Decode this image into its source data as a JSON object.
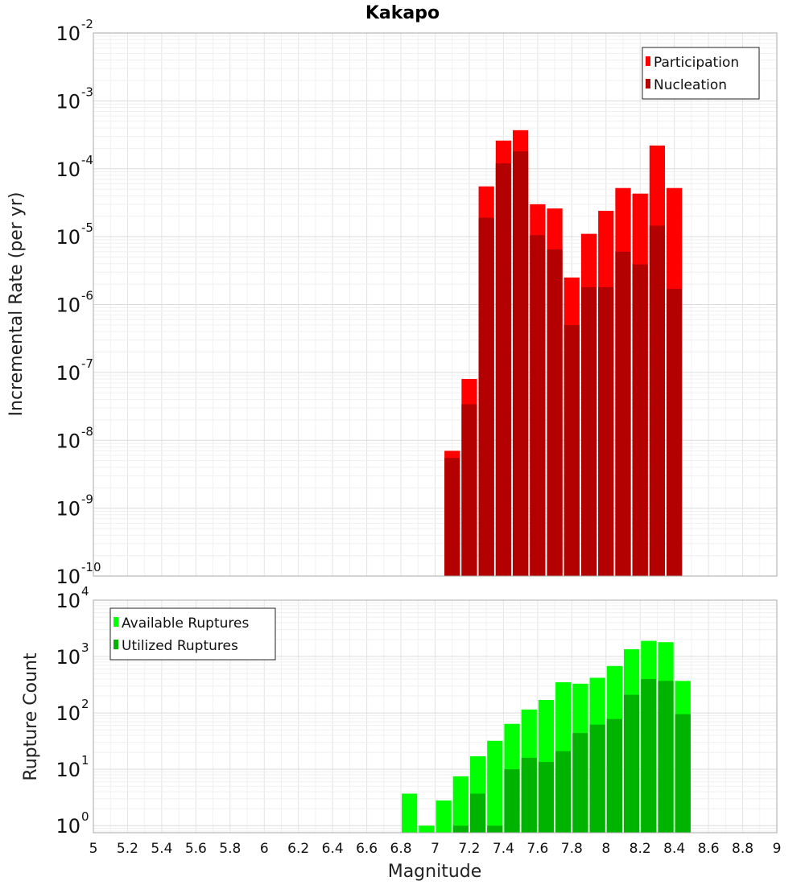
{
  "chart_data": [
    {
      "type": "bar",
      "title": "Kakapo",
      "xlabel": "Magnitude",
      "ylabel": "Incremental Rate (per yr)",
      "yscale": "log",
      "xlim": [
        5,
        9
      ],
      "ylim": [
        1e-10,
        0.01
      ],
      "grid": true,
      "legend_position": "top-right",
      "x": [
        7.1,
        7.2,
        7.3,
        7.4,
        7.5,
        7.6,
        7.7,
        7.8,
        7.9,
        8.0,
        8.1,
        8.2,
        8.3,
        8.4
      ],
      "series": [
        {
          "name": "Participation",
          "color": "#ff0000",
          "values": [
            7e-09,
            8e-08,
            5.5e-05,
            0.00026,
            0.00037,
            3e-05,
            2.6e-05,
            2.5e-06,
            1.1e-05,
            2.4e-05,
            5.2e-05,
            4.3e-05,
            0.00022,
            5.2e-05
          ]
        },
        {
          "name": "Nucleation",
          "color": "#b30000",
          "values": [
            5.5e-09,
            3.4e-08,
            1.9e-05,
            0.00012,
            0.00018,
            1.05e-05,
            6.5e-06,
            5e-07,
            1.8e-06,
            1.8e-06,
            6e-06,
            3.9e-06,
            1.45e-05,
            1.7e-06
          ]
        }
      ]
    },
    {
      "type": "bar",
      "title": "",
      "xlabel": "Magnitude",
      "ylabel": "Rupture Count",
      "yscale": "log",
      "xlim": [
        5,
        9
      ],
      "ylim": [
        0.75,
        10000
      ],
      "grid": true,
      "legend_position": "top-left",
      "x": [
        6.85,
        6.95,
        7.05,
        7.15,
        7.25,
        7.35,
        7.45,
        7.55,
        7.65,
        7.75,
        7.85,
        7.95,
        8.05,
        8.15,
        8.25,
        8.35,
        8.45
      ],
      "series": [
        {
          "name": "Available Ruptures",
          "color": "#00ff00",
          "values": [
            3.7,
            1,
            2.8,
            7.5,
            17,
            32,
            64,
            115,
            170,
            350,
            330,
            420,
            680,
            1350,
            1900,
            1800,
            370
          ]
        },
        {
          "name": "Utilized Ruptures",
          "color": "#00b300",
          "values": [
            0,
            0,
            0,
            1,
            3.7,
            1,
            10,
            16,
            13.5,
            21,
            44,
            62,
            78,
            210,
            400,
            370,
            95
          ]
        }
      ]
    }
  ],
  "x_ticks": [
    "5",
    "5.2",
    "5.4",
    "5.6",
    "5.8",
    "6",
    "6.2",
    "6.4",
    "6.6",
    "6.8",
    "7",
    "7.2",
    "7.4",
    "7.6",
    "7.8",
    "8",
    "8.2",
    "8.4",
    "8.6",
    "8.8",
    "9"
  ],
  "top_y_exponents": [
    "-10",
    "-9",
    "-8",
    "-7",
    "-6",
    "-5",
    "-4",
    "-3",
    "-2"
  ],
  "bottom_y_exponents": [
    "0",
    "1",
    "2",
    "3",
    "4"
  ],
  "tick_base": "10"
}
